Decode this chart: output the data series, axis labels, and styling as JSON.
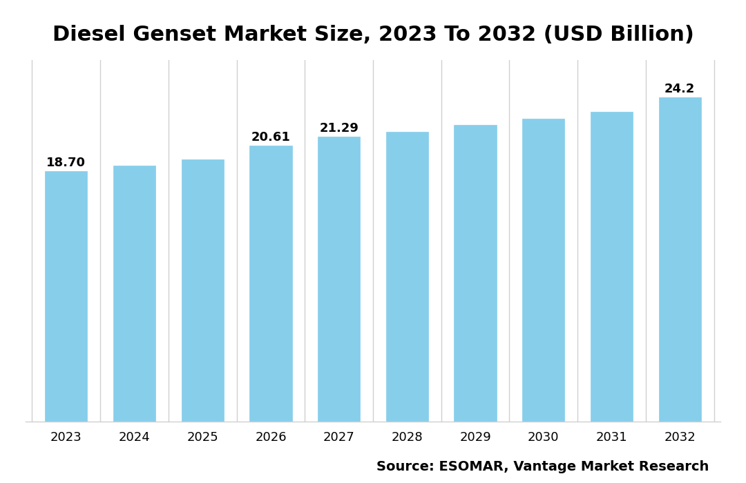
{
  "title": "Diesel Genset Market Size, 2023 To 2032 (USD Billion)",
  "categories": [
    "2023",
    "2024",
    "2025",
    "2026",
    "2027",
    "2028",
    "2029",
    "2030",
    "2031",
    "2032"
  ],
  "values": [
    18.7,
    19.1,
    19.55,
    20.61,
    21.29,
    21.65,
    22.15,
    22.6,
    23.15,
    24.2
  ],
  "labels": {
    "0": "18.70",
    "3": "20.61",
    "4": "21.29",
    "9": "24.2"
  },
  "bar_color": "#87CEEB",
  "bar_edge_color": "#87CEEB",
  "background_color": "#ffffff",
  "grid_color": "#d0d0d0",
  "title_fontsize": 22,
  "tick_fontsize": 13,
  "label_fontsize": 13,
  "source_text": "Source: ESOMAR, Vantage Market Research",
  "source_fontsize": 14,
  "ylim_min": 0,
  "ylim_max": 27,
  "bar_width": 0.62
}
